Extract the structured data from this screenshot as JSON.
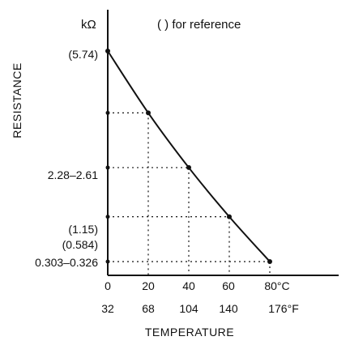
{
  "chart_data": {
    "type": "line",
    "title": "",
    "xlabel": "TEMPERATURE",
    "ylabel": "RESISTANCE",
    "y_unit": "kΩ",
    "note": "(   ) for reference",
    "x_ticks_c": [
      "0",
      "20",
      "40",
      "60",
      "80°C"
    ],
    "x_ticks_f": [
      "32",
      "68",
      "104",
      "140",
      "176°F"
    ],
    "y_tick_labels": [
      "(5.74)",
      "2.28–2.61",
      "(1.15)",
      "(0.584)",
      "0.303–0.326"
    ],
    "xlim": [
      0,
      80
    ],
    "series": [
      {
        "x": [
          0,
          20,
          40,
          60,
          80
        ],
        "y": [
          5.74,
          2.445,
          1.15,
          0.584,
          0.3145
        ]
      }
    ]
  }
}
